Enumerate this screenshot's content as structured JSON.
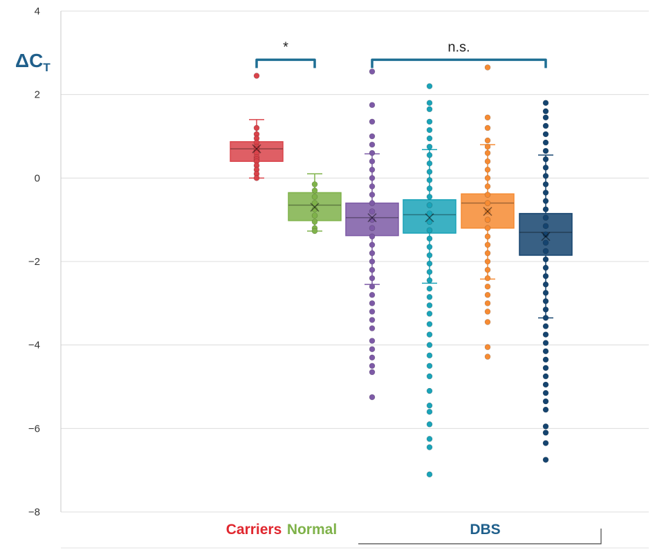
{
  "chart_data": {
    "type": "box",
    "ylabel": "ΔC",
    "ylabel_subscript": "T",
    "ylim": [
      -8,
      4
    ],
    "yticks": [
      4,
      2,
      0,
      -2,
      -4,
      -6,
      -8
    ],
    "ytick_labels": [
      "4",
      "2",
      "0",
      "−2",
      "−4",
      "−6",
      "−8"
    ],
    "grid": true,
    "series": [
      {
        "color": "#d9434a",
        "min": 0.0,
        "q1": 0.4,
        "median": 0.7,
        "q3": 0.87,
        "max": 1.4,
        "mean": 0.7,
        "points": [
          2.45,
          1.2,
          1.05,
          0.95,
          0.85,
          0.75,
          0.7,
          0.65,
          0.6,
          0.5,
          0.45,
          0.4,
          0.3,
          0.2,
          0.1,
          0.0
        ]
      },
      {
        "color": "#7fb24a",
        "min": -1.27,
        "q1": -1.02,
        "median": -0.65,
        "q3": -0.35,
        "max": 0.1,
        "mean": -0.7,
        "points": [
          -0.15,
          -0.3,
          -0.45,
          -0.6,
          -0.75,
          -0.9,
          -1.05,
          -1.2,
          -1.27
        ]
      },
      {
        "color": "#7d5aa6",
        "min": -2.55,
        "q1": -1.38,
        "median": -0.95,
        "q3": -0.6,
        "max": 0.58,
        "mean": -0.95,
        "points": [
          2.55,
          1.75,
          1.35,
          1.0,
          0.8,
          0.6,
          0.4,
          0.2,
          0.0,
          -0.2,
          -0.4,
          -0.6,
          -0.8,
          -1.0,
          -1.2,
          -1.4,
          -1.6,
          -1.8,
          -2.0,
          -2.2,
          -2.4,
          -2.6,
          -2.8,
          -3.0,
          -3.2,
          -3.4,
          -3.6,
          -3.9,
          -4.1,
          -4.3,
          -4.5,
          -4.65,
          -5.25
        ]
      },
      {
        "color": "#1aa3b8",
        "min": -2.52,
        "q1": -1.32,
        "median": -0.88,
        "q3": -0.52,
        "max": 0.68,
        "mean": -0.95,
        "points": [
          2.2,
          1.8,
          1.65,
          1.35,
          1.15,
          0.95,
          0.75,
          0.55,
          0.35,
          0.15,
          -0.05,
          -0.25,
          -0.45,
          -0.65,
          -0.85,
          -1.05,
          -1.25,
          -1.45,
          -1.65,
          -1.85,
          -2.05,
          -2.25,
          -2.45,
          -2.65,
          -2.85,
          -3.05,
          -3.25,
          -3.5,
          -3.75,
          -4.0,
          -4.25,
          -4.5,
          -4.75,
          -5.1,
          -5.45,
          -5.6,
          -5.9,
          -6.25,
          -6.45,
          -7.1
        ]
      },
      {
        "color": "#f68b33",
        "min": -2.42,
        "q1": -1.2,
        "median": -0.6,
        "q3": -0.38,
        "max": 0.8,
        "mean": -0.8,
        "points": [
          2.65,
          1.45,
          1.2,
          0.9,
          0.75,
          0.6,
          0.4,
          0.2,
          0.0,
          -0.2,
          -0.4,
          -0.6,
          -0.8,
          -1.0,
          -1.2,
          -1.4,
          -1.6,
          -1.8,
          -2.0,
          -2.2,
          -2.4,
          -2.6,
          -2.8,
          -3.0,
          -3.2,
          -3.45,
          -4.05,
          -4.28
        ]
      },
      {
        "color": "#15446f",
        "min": -3.35,
        "q1": -1.85,
        "median": -1.3,
        "q3": -0.85,
        "max": 0.55,
        "mean": -1.4,
        "points": [
          1.8,
          1.6,
          1.45,
          1.25,
          1.05,
          0.85,
          0.65,
          0.45,
          0.25,
          0.05,
          -0.15,
          -0.35,
          -0.55,
          -0.75,
          -0.95,
          -1.15,
          -1.35,
          -1.55,
          -1.75,
          -1.95,
          -2.15,
          -2.35,
          -2.55,
          -2.75,
          -2.95,
          -3.15,
          -3.35,
          -3.55,
          -3.75,
          -3.95,
          -4.15,
          -4.35,
          -4.55,
          -4.75,
          -4.95,
          -5.15,
          -5.35,
          -5.55,
          -5.95,
          -6.1,
          -6.35,
          -6.75
        ]
      }
    ],
    "annotations": [
      {
        "text": "*",
        "from": 0,
        "to": 1,
        "y": 3.0
      },
      {
        "text": "n.s.",
        "from": 2,
        "to": 5,
        "y": 3.0
      }
    ],
    "group_labels": [
      {
        "text": "Carriers",
        "color": "#e0262e",
        "start": 0,
        "end": 0
      },
      {
        "text": "Normal",
        "color": "#7fb24a",
        "start": 1,
        "end": 1
      },
      {
        "text": "DBS",
        "color": "#1f5f8b",
        "start": 2,
        "end": 5
      }
    ]
  }
}
